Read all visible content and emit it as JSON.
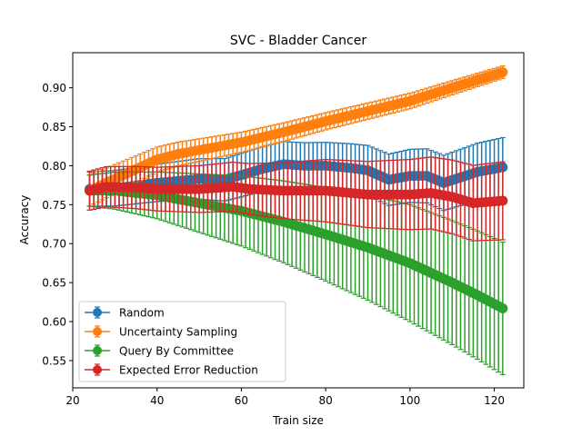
{
  "chart_data": {
    "type": "line",
    "title": "SVC - Bladder Cancer",
    "xlabel": "Train size",
    "ylabel": "Accuracy",
    "xlim": [
      20,
      127
    ],
    "ylim": [
      0.515,
      0.945
    ],
    "xticks": [
      20,
      40,
      60,
      80,
      100,
      120
    ],
    "yticks": [
      0.55,
      0.6,
      0.65,
      0.7,
      0.75,
      0.8,
      0.85,
      0.9
    ],
    "grid": false,
    "legend_position": "lower-left",
    "error_bars": true,
    "x_start": 24,
    "x_step": 1,
    "series": [
      {
        "name": "Random",
        "color": "#1f77b4",
        "anchors": [
          [
            24,
            0.77
          ],
          [
            30,
            0.771
          ],
          [
            40,
            0.778
          ],
          [
            50,
            0.783
          ],
          [
            56,
            0.782
          ],
          [
            60,
            0.788
          ],
          [
            65,
            0.796
          ],
          [
            70,
            0.802
          ],
          [
            75,
            0.8
          ],
          [
            80,
            0.8
          ],
          [
            86,
            0.797
          ],
          [
            90,
            0.794
          ],
          [
            95,
            0.782
          ],
          [
            100,
            0.787
          ],
          [
            104,
            0.787
          ],
          [
            108,
            0.778
          ],
          [
            112,
            0.785
          ],
          [
            116,
            0.792
          ],
          [
            122,
            0.798
          ]
        ],
        "err_anchors": [
          [
            24,
            0.022
          ],
          [
            40,
            0.024
          ],
          [
            60,
            0.028
          ],
          [
            80,
            0.03
          ],
          [
            100,
            0.034
          ],
          [
            122,
            0.038
          ]
        ]
      },
      {
        "name": "Uncertainty Sampling",
        "color": "#ff7f0e",
        "anchors": [
          [
            24,
            0.768
          ],
          [
            30,
            0.783
          ],
          [
            36,
            0.798
          ],
          [
            40,
            0.808
          ],
          [
            45,
            0.815
          ],
          [
            50,
            0.82
          ],
          [
            55,
            0.825
          ],
          [
            60,
            0.83
          ],
          [
            70,
            0.843
          ],
          [
            80,
            0.857
          ],
          [
            90,
            0.87
          ],
          [
            100,
            0.883
          ],
          [
            110,
            0.9
          ],
          [
            116,
            0.91
          ],
          [
            122,
            0.92
          ]
        ],
        "err_anchors": [
          [
            24,
            0.02
          ],
          [
            40,
            0.016
          ],
          [
            60,
            0.013
          ],
          [
            80,
            0.011
          ],
          [
            100,
            0.01
          ],
          [
            122,
            0.008
          ]
        ]
      },
      {
        "name": "Query By Committee",
        "color": "#2ca02c",
        "anchors": [
          [
            24,
            0.768
          ],
          [
            30,
            0.768
          ],
          [
            40,
            0.762
          ],
          [
            50,
            0.752
          ],
          [
            60,
            0.742
          ],
          [
            70,
            0.728
          ],
          [
            80,
            0.712
          ],
          [
            90,
            0.695
          ],
          [
            100,
            0.675
          ],
          [
            110,
            0.65
          ],
          [
            116,
            0.634
          ],
          [
            122,
            0.617
          ]
        ],
        "err_anchors": [
          [
            24,
            0.02
          ],
          [
            40,
            0.03
          ],
          [
            60,
            0.045
          ],
          [
            80,
            0.06
          ],
          [
            100,
            0.075
          ],
          [
            122,
            0.085
          ]
        ]
      },
      {
        "name": "Expected Error Reduction",
        "color": "#d62728",
        "anchors": [
          [
            24,
            0.768
          ],
          [
            28,
            0.773
          ],
          [
            35,
            0.772
          ],
          [
            40,
            0.77
          ],
          [
            50,
            0.77
          ],
          [
            58,
            0.773
          ],
          [
            62,
            0.77
          ],
          [
            70,
            0.768
          ],
          [
            80,
            0.768
          ],
          [
            90,
            0.763
          ],
          [
            100,
            0.763
          ],
          [
            105,
            0.765
          ],
          [
            110,
            0.76
          ],
          [
            115,
            0.752
          ],
          [
            122,
            0.755
          ]
        ],
        "err_anchors": [
          [
            24,
            0.025
          ],
          [
            40,
            0.028
          ],
          [
            60,
            0.032
          ],
          [
            80,
            0.04
          ],
          [
            100,
            0.045
          ],
          [
            122,
            0.05
          ]
        ]
      }
    ]
  }
}
